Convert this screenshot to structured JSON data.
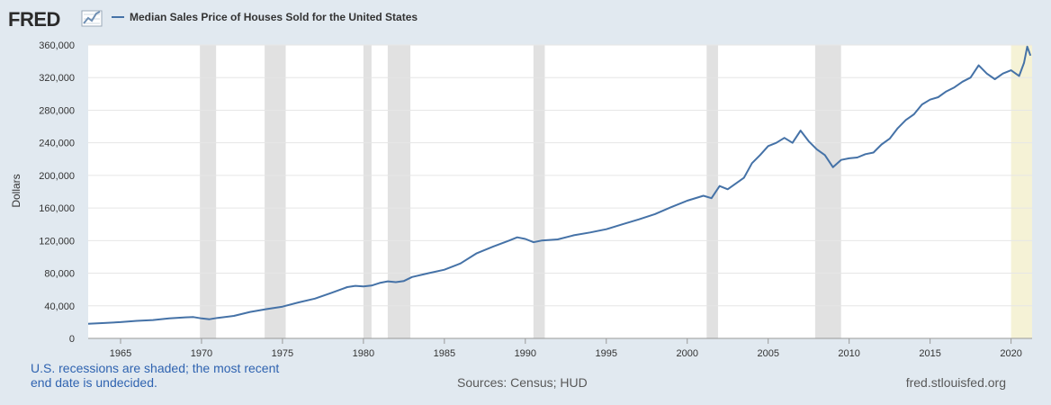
{
  "header": {
    "logo_text": "FRED",
    "logo_icon": "line-chart-icon"
  },
  "colors": {
    "series": "#4572a7",
    "recession": "#e1e1e1",
    "undecided_recession": "#f5f2d6",
    "plot_bg": "#ffffff",
    "page_bg": "#e1e9f0",
    "note_text": "#2f63b0"
  },
  "footer": {
    "note": "U.S. recessions are shaded; the most recent end date is undecided.",
    "sources": "Sources: Census; HUD",
    "site": "fred.stlouisfed.org"
  },
  "chart_data": {
    "type": "line",
    "title": "",
    "xlabel": "",
    "ylabel": "Dollars",
    "ylim": [
      0,
      360000
    ],
    "xlim": [
      1963,
      2021.3
    ],
    "grid": "horizontal",
    "legend": "top-left",
    "y_ticks": [
      0,
      40000,
      80000,
      120000,
      160000,
      200000,
      240000,
      280000,
      320000,
      360000
    ],
    "y_tick_labels": [
      "0",
      "40,000",
      "80,000",
      "120,000",
      "160,000",
      "200,000",
      "240,000",
      "280,000",
      "320,000",
      "360,000"
    ],
    "x_ticks": [
      1965,
      1970,
      1975,
      1980,
      1985,
      1990,
      1995,
      2000,
      2005,
      2010,
      2015,
      2020
    ],
    "x_tick_labels": [
      "1965",
      "1970",
      "1975",
      "1980",
      "1985",
      "1990",
      "1995",
      "2000",
      "2005",
      "2010",
      "2015",
      "2020"
    ],
    "recessions": [
      {
        "start": 1969.9,
        "end": 1970.9
      },
      {
        "start": 1973.9,
        "end": 1975.2
      },
      {
        "start": 1980.0,
        "end": 1980.5
      },
      {
        "start": 1981.5,
        "end": 1982.9
      },
      {
        "start": 1990.5,
        "end": 1991.2
      },
      {
        "start": 2001.2,
        "end": 2001.9
      },
      {
        "start": 2007.9,
        "end": 2009.5
      }
    ],
    "undecided_recession": {
      "start": 2020.0,
      "end": 2021.3
    },
    "series": [
      {
        "name": "Median Sales Price of Houses Sold for the United States",
        "x": [
          1963.0,
          1964.0,
          1965.0,
          1966.0,
          1967.0,
          1968.0,
          1969.0,
          1969.5,
          1970.0,
          1970.5,
          1971.0,
          1972.0,
          1973.0,
          1974.0,
          1975.0,
          1976.0,
          1977.0,
          1978.0,
          1979.0,
          1979.5,
          1980.0,
          1980.5,
          1981.0,
          1981.5,
          1982.0,
          1982.5,
          1983.0,
          1984.0,
          1985.0,
          1986.0,
          1987.0,
          1988.0,
          1989.0,
          1989.5,
          1990.0,
          1990.5,
          1991.0,
          1992.0,
          1993.0,
          1994.0,
          1995.0,
          1996.0,
          1997.0,
          1998.0,
          1999.0,
          2000.0,
          2001.0,
          2001.5,
          2002.0,
          2002.5,
          2003.0,
          2003.5,
          2004.0,
          2004.5,
          2005.0,
          2005.5,
          2006.0,
          2006.5,
          2007.0,
          2007.5,
          2008.0,
          2008.5,
          2009.0,
          2009.5,
          2010.0,
          2010.5,
          2011.0,
          2011.5,
          2012.0,
          2012.5,
          2013.0,
          2013.5,
          2014.0,
          2014.5,
          2015.0,
          2015.5,
          2016.0,
          2016.5,
          2017.0,
          2017.5,
          2018.0,
          2018.5,
          2019.0,
          2019.5,
          2020.0,
          2020.5,
          2020.8,
          2021.0,
          2021.2
        ],
        "values": [
          18000,
          18900,
          20000,
          21500,
          22500,
          24500,
          25800,
          26200,
          24500,
          23500,
          25200,
          27600,
          32500,
          35900,
          39000,
          44200,
          48800,
          55700,
          62900,
          64500,
          63700,
          64800,
          68000,
          70000,
          69000,
          70500,
          75300,
          79900,
          84300,
          92000,
          104500,
          112500,
          120000,
          124000,
          122000,
          118000,
          120000,
          121500,
          126500,
          130000,
          133900,
          140000,
          146000,
          152500,
          161000,
          169000,
          175000,
          172000,
          187000,
          183000,
          190000,
          197000,
          215000,
          225000,
          236000,
          240000,
          246000,
          240000,
          255000,
          242000,
          232000,
          225000,
          210000,
          219000,
          221000,
          222000,
          226000,
          228000,
          238000,
          245000,
          258000,
          268000,
          275000,
          287000,
          293000,
          296000,
          303000,
          308000,
          315000,
          320000,
          335000,
          325000,
          318000,
          325000,
          329000,
          322000,
          338000,
          358000,
          347000
        ]
      }
    ]
  }
}
